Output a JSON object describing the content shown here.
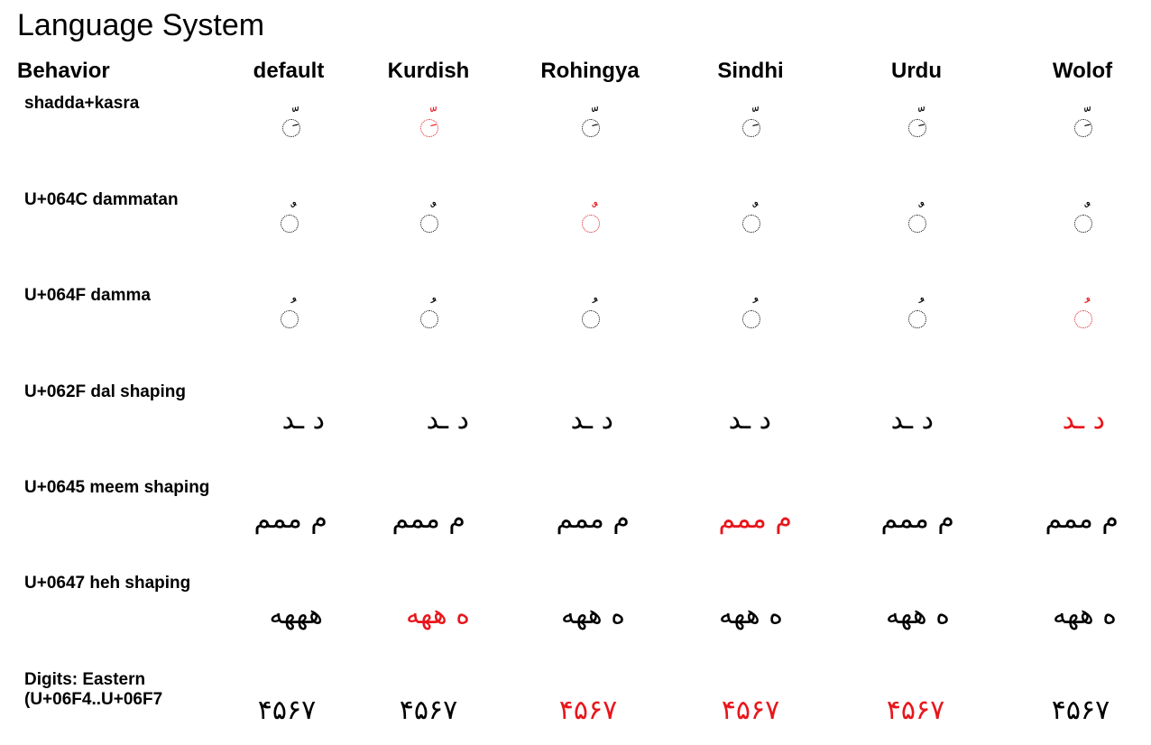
{
  "title": "Language System",
  "header": {
    "behavior": "Behavior",
    "columns": [
      "default",
      "Kurdish",
      "Rohingya",
      "Sindhi",
      "Urdu",
      "Wolof"
    ]
  },
  "rows": [
    {
      "label": "shadda+kasra",
      "type": "mark",
      "cells": [
        "ِّ",
        "ِّ",
        "ِّ",
        "ِّ",
        "ِّ",
        "ِّ"
      ],
      "highlight": [
        false,
        true,
        false,
        false,
        false,
        false
      ]
    },
    {
      "label": "U+064C dammatan",
      "type": "mark",
      "cells": [
        "ٌ",
        "ٌ",
        "ٌ",
        "ٌ",
        "ٌ",
        "ٌ"
      ],
      "highlight": [
        false,
        false,
        true,
        false,
        false,
        false
      ]
    },
    {
      "label": "U+064F damma",
      "type": "mark",
      "cells": [
        "ُ",
        "ُ",
        "ُ",
        "ُ",
        "ُ",
        "ُ"
      ],
      "highlight": [
        false,
        false,
        false,
        false,
        false,
        true
      ]
    },
    {
      "label": "U+062F dal shaping",
      "type": "shape",
      "cells": [
        "د ـد",
        "د ـد",
        "د ـد",
        "د ـد",
        "د ـد",
        "د ـد"
      ],
      "highlight": [
        false,
        false,
        false,
        false,
        false,
        true
      ]
    },
    {
      "label": "U+0645 meem shaping",
      "type": "shape",
      "cells": [
        "م ممم",
        "م ممم",
        "م ممم",
        "م ممم",
        "م ممم",
        "م ممم"
      ],
      "highlight": [
        false,
        false,
        false,
        true,
        false,
        false
      ]
    },
    {
      "label": "U+0647 heh shaping",
      "type": "shape",
      "cells": [
        "هههه",
        "ه ههه",
        "ه ههه",
        "ه ههه",
        "ه ههه",
        "ه ههه"
      ],
      "highlight": [
        false,
        true,
        false,
        false,
        false,
        false
      ]
    },
    {
      "label_lines": [
        "Digits: Eastern",
        "(U+06F4..U+06F7"
      ],
      "type": "digits",
      "cells": [
        "۴۵۶۷",
        "۴۵۶۷",
        "۴۵۶۷",
        "۴۵۶۷",
        "۴۵۶۷",
        "۴۵۶۷"
      ],
      "highlight": [
        false,
        false,
        true,
        true,
        true,
        false
      ]
    }
  ],
  "colors": {
    "text": "#000000",
    "highlight": "#e8161b"
  }
}
